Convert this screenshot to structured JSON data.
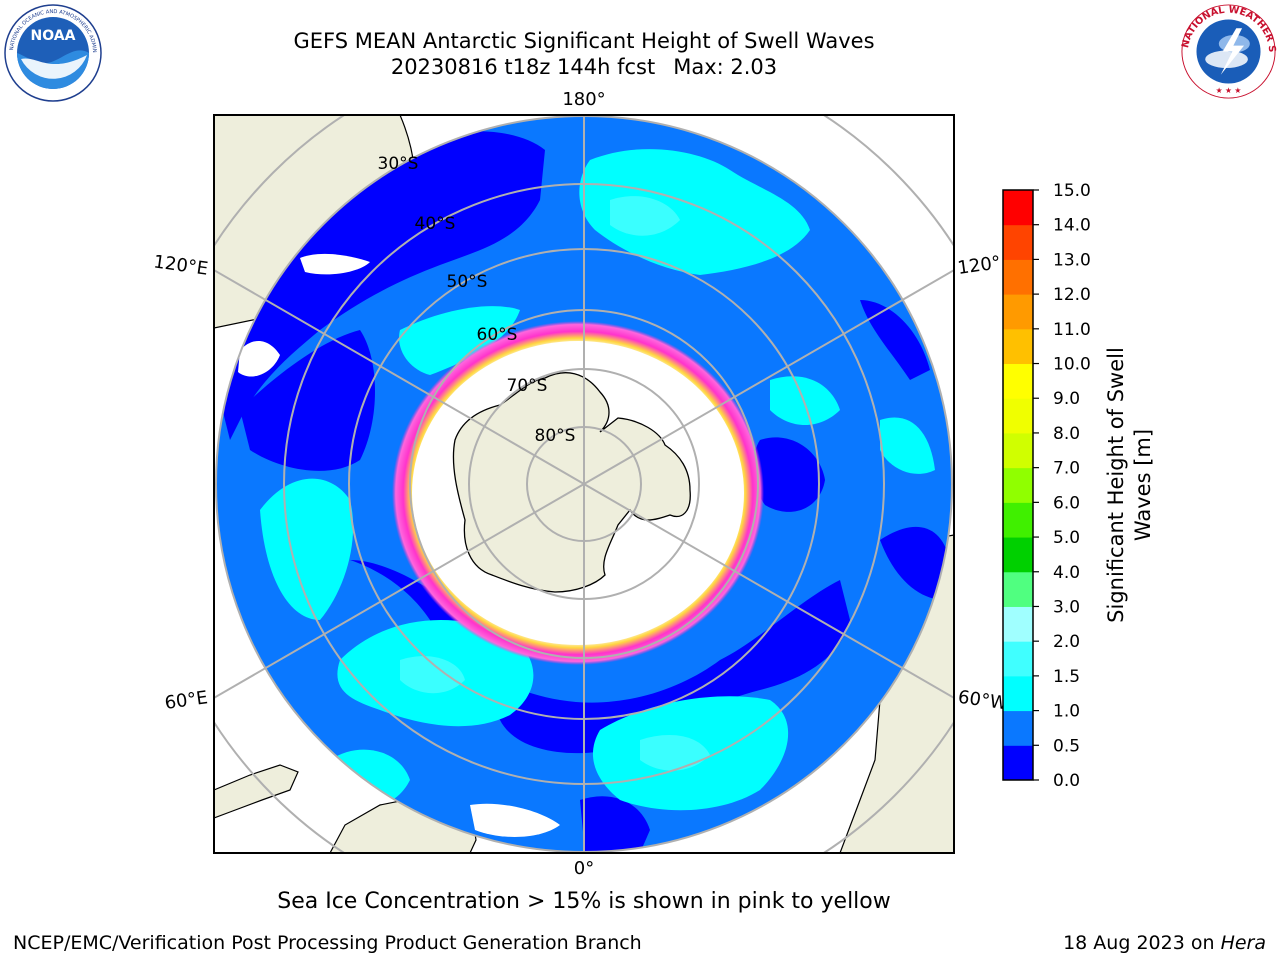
{
  "header": {
    "title_line1": "GEFS MEAN Antarctic Significant Height of Swell Waves",
    "title_run": "20230816 t18z 144h fcst",
    "title_max": "Max: 2.03"
  },
  "logos": {
    "left": {
      "name": "noaa-logo",
      "text": "NOAA",
      "ring_text": "NATIONAL OCEANIC AND ATMOSPHERIC ADMINISTRATION · U.S. DEPARTMENT OF COMMERCE"
    },
    "right": {
      "name": "nws-logo",
      "ring_text": "NATIONAL WEATHER SERVICE"
    }
  },
  "map": {
    "projection": "south-polar-stereographic",
    "lon_labels": {
      "top": "180°",
      "bottom": "0°",
      "upper_left": "120°E",
      "upper_right": "120°",
      "lower_left": "60°E",
      "lower_right": "60°W"
    },
    "lat_labels": [
      "30°S",
      "40°S",
      "50°S",
      "60°S",
      "70°S",
      "80°S"
    ],
    "colors": {
      "land": "#eeeedc",
      "sea_ice_pink": "#ff33cc",
      "sea_ice_yellow": "#ffd740",
      "ice_interior": "#ffffff",
      "grid": "#b0b0b0"
    }
  },
  "colorbar": {
    "label_line1": "Significant Height of Swell",
    "label_line2": "Waves [m]",
    "ticks": [
      "0.0",
      "0.5",
      "1.0",
      "1.5",
      "2.0",
      "3.0",
      "4.0",
      "5.0",
      "6.0",
      "7.0",
      "8.0",
      "9.0",
      "10.0",
      "11.0",
      "12.0",
      "13.0",
      "14.0",
      "15.0"
    ],
    "colors": [
      "#0000ff",
      "#0a78ff",
      "#00ffff",
      "#40ffff",
      "#a0ffff",
      "#50ff80",
      "#00d000",
      "#40f000",
      "#90ff00",
      "#d0ff00",
      "#f0ff00",
      "#ffff00",
      "#ffc000",
      "#ff9a00",
      "#ff7000",
      "#ff4400",
      "#ff0000"
    ]
  },
  "footer": {
    "note": "Sea Ice Concentration > 15% is shown in pink to yellow",
    "credit": "NCEP/EMC/Verification Post Processing Product Generation Branch",
    "date": "18 Aug 2023 on",
    "host": "Hera"
  }
}
